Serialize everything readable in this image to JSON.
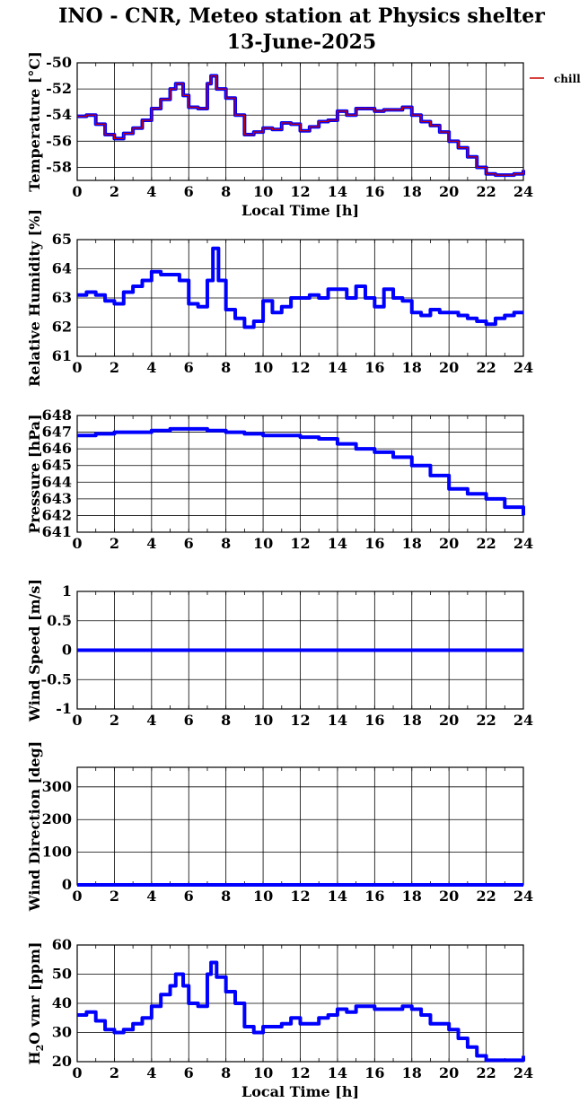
{
  "title_line1": "INO - CNR, Meteo station at Physics shelter",
  "title_line2": "13-June-2025",
  "legend_label": "chill",
  "colors": {
    "series": "#0000ff",
    "chill": "#cc0000",
    "grid": "#000000"
  },
  "chart_data": [
    {
      "type": "line",
      "ylabel": "Temperature [°C]",
      "xlabel": "Local Time [h]",
      "xlim": [
        0,
        24
      ],
      "ylim": [
        -59,
        -50
      ],
      "xticks": [
        0,
        2,
        4,
        6,
        8,
        10,
        12,
        14,
        16,
        18,
        20,
        22,
        24
      ],
      "yticks": [
        -58,
        -56,
        -54,
        -52,
        -50
      ],
      "series": [
        {
          "x": [
            0,
            0.5,
            1,
            1.5,
            2,
            2.5,
            3,
            3.5,
            4,
            4.5,
            5,
            5.3,
            5.7,
            6,
            6.5,
            7,
            7.2,
            7.5,
            8,
            8.5,
            9,
            9.5,
            10,
            10.5,
            11,
            11.5,
            12,
            12.5,
            13,
            13.5,
            14,
            14.5,
            15,
            15.5,
            16,
            16.5,
            17,
            17.5,
            18,
            18.5,
            19,
            19.5,
            20,
            20.5,
            21,
            21.5,
            22,
            22.5,
            23,
            23.5,
            24
          ],
          "y": [
            -54.1,
            -54.0,
            -54.7,
            -55.5,
            -55.8,
            -55.4,
            -55.0,
            -54.4,
            -53.5,
            -52.8,
            -52.0,
            -51.6,
            -52.5,
            -53.4,
            -53.5,
            -51.6,
            -51.0,
            -52.0,
            -52.7,
            -54.0,
            -55.5,
            -55.3,
            -55.0,
            -55.1,
            -54.6,
            -54.7,
            -55.2,
            -54.9,
            -54.5,
            -54.4,
            -53.7,
            -54.0,
            -53.5,
            -53.5,
            -53.7,
            -53.6,
            -53.6,
            -53.4,
            -54.0,
            -54.5,
            -54.8,
            -55.3,
            -56.0,
            -56.5,
            -57.2,
            -58.0,
            -58.5,
            -58.6,
            -58.6,
            -58.5,
            -58.2
          ]
        }
      ],
      "overlay_chill": true
    },
    {
      "type": "line",
      "ylabel": "Relative Humidity [%]",
      "xlim": [
        0,
        24
      ],
      "ylim": [
        61,
        65
      ],
      "xticks": [
        0,
        2,
        4,
        6,
        8,
        10,
        12,
        14,
        16,
        18,
        20,
        22,
        24
      ],
      "yticks": [
        61,
        62,
        63,
        64,
        65
      ],
      "series": [
        {
          "x": [
            0,
            0.5,
            1,
            1.5,
            2,
            2.5,
            3,
            3.5,
            4,
            4.5,
            5,
            5.5,
            6,
            6.5,
            7,
            7.3,
            7.6,
            8,
            8.5,
            9,
            9.5,
            10,
            10.5,
            11,
            11.5,
            12,
            12.5,
            13,
            13.5,
            14,
            14.5,
            15,
            15.5,
            16,
            16.5,
            17,
            17.5,
            18,
            18.5,
            19,
            19.5,
            20,
            20.5,
            21,
            21.5,
            22,
            22.5,
            23,
            23.5,
            24
          ],
          "y": [
            63.1,
            63.2,
            63.1,
            62.9,
            62.8,
            63.2,
            63.4,
            63.6,
            63.9,
            63.8,
            63.8,
            63.6,
            62.8,
            62.7,
            63.6,
            64.7,
            63.6,
            62.6,
            62.3,
            62.0,
            62.2,
            62.9,
            62.5,
            62.7,
            63.0,
            63.0,
            63.1,
            63.0,
            63.3,
            63.3,
            63.0,
            63.4,
            63.0,
            62.7,
            63.3,
            63.0,
            62.9,
            62.5,
            62.4,
            62.6,
            62.5,
            62.5,
            62.4,
            62.3,
            62.2,
            62.1,
            62.3,
            62.4,
            62.5,
            62.5
          ]
        }
      ]
    },
    {
      "type": "line",
      "ylabel": "Pressure [hPa]",
      "xlim": [
        0,
        24
      ],
      "ylim": [
        641,
        648
      ],
      "xticks": [
        0,
        2,
        4,
        6,
        8,
        10,
        12,
        14,
        16,
        18,
        20,
        22,
        24
      ],
      "yticks": [
        641,
        642,
        643,
        644,
        645,
        646,
        647,
        648
      ],
      "series": [
        {
          "x": [
            0,
            1,
            2,
            3,
            4,
            5,
            6,
            7,
            8,
            9,
            10,
            11,
            12,
            13,
            14,
            15,
            16,
            17,
            18,
            19,
            20,
            21,
            22,
            23,
            24
          ],
          "y": [
            646.8,
            646.9,
            647.0,
            647.0,
            647.1,
            647.2,
            647.2,
            647.1,
            647.0,
            646.9,
            646.8,
            646.8,
            646.7,
            646.6,
            646.3,
            646.0,
            645.8,
            645.5,
            645.0,
            644.4,
            643.6,
            643.3,
            643.0,
            642.5,
            642.0
          ]
        }
      ]
    },
    {
      "type": "line",
      "ylabel": "Wind Speed [m/s]",
      "xlim": [
        0,
        24
      ],
      "ylim": [
        -1,
        1
      ],
      "xticks": [
        0,
        2,
        4,
        6,
        8,
        10,
        12,
        14,
        16,
        18,
        20,
        22,
        24
      ],
      "yticks": [
        -1,
        -0.5,
        0,
        0.5,
        1
      ],
      "series": [
        {
          "x": [
            0,
            24
          ],
          "y": [
            0,
            0
          ]
        }
      ]
    },
    {
      "type": "line",
      "ylabel": "Wind Direction [deg]",
      "xlim": [
        0,
        24
      ],
      "ylim": [
        0,
        360
      ],
      "xticks": [
        0,
        2,
        4,
        6,
        8,
        10,
        12,
        14,
        16,
        18,
        20,
        22,
        24
      ],
      "yticks": [
        0,
        100,
        200,
        300
      ],
      "series": [
        {
          "x": [
            0,
            24
          ],
          "y": [
            0,
            0
          ]
        }
      ]
    },
    {
      "type": "line",
      "ylabel": "H2O vmr [ppm]",
      "xlabel": "Local Time [h]",
      "xlim": [
        0,
        24
      ],
      "ylim": [
        20,
        60
      ],
      "xticks": [
        0,
        2,
        4,
        6,
        8,
        10,
        12,
        14,
        16,
        18,
        20,
        22,
        24
      ],
      "yticks": [
        20,
        30,
        40,
        50,
        60
      ],
      "series": [
        {
          "x": [
            0,
            0.5,
            1,
            1.5,
            2,
            2.5,
            3,
            3.5,
            4,
            4.5,
            5,
            5.3,
            5.7,
            6,
            6.5,
            7,
            7.2,
            7.5,
            8,
            8.5,
            9,
            9.5,
            10,
            10.5,
            11,
            11.5,
            12,
            12.5,
            13,
            13.5,
            14,
            14.5,
            15,
            15.5,
            16,
            16.5,
            17,
            17.5,
            18,
            18.5,
            19,
            19.5,
            20,
            20.5,
            21,
            21.5,
            22,
            22.5,
            23,
            23.5,
            24
          ],
          "y": [
            36,
            37,
            34,
            31,
            30,
            31,
            33,
            35,
            39,
            43,
            46,
            50,
            46,
            40,
            39,
            50,
            54,
            49,
            44,
            40,
            32,
            30,
            32,
            32,
            33,
            35,
            33,
            33,
            35,
            36,
            38,
            37,
            39,
            39,
            38,
            38,
            38,
            39,
            38,
            36,
            33,
            33,
            31,
            28,
            25,
            22,
            20.5,
            20.5,
            20.5,
            20.5,
            22
          ]
        }
      ]
    }
  ]
}
